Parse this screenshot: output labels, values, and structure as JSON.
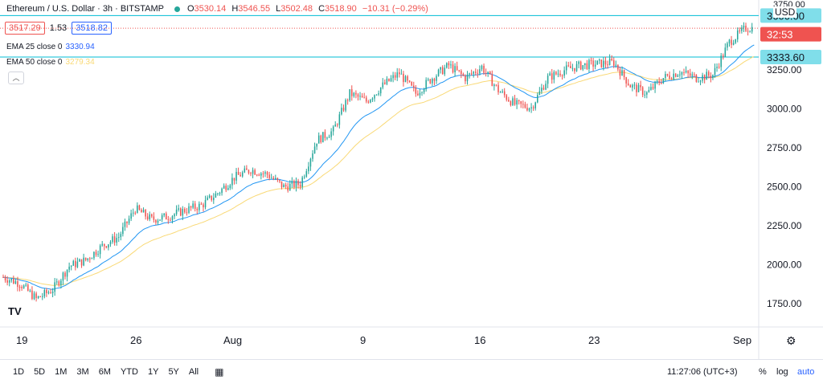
{
  "legend": {
    "symbol": "Ethereum / U.S. Dollar · 3h · BITSTAMP",
    "open_label": "O",
    "open": "3530.14",
    "high_label": "H",
    "high": "3546.55",
    "low_label": "L",
    "low": "3502.48",
    "close_label": "C",
    "close": "3518.90",
    "change": "−10.31 (−0.29%)"
  },
  "trade": {
    "sell": "3517.29",
    "spread": "1.53",
    "buy": "3518.82"
  },
  "indicators": {
    "ema25_label": "EMA 25 close 0",
    "ema25_value": "3330.94",
    "ema50_label": "EMA 50 close 0",
    "ema50_value": "3279.34"
  },
  "price_axis": {
    "currency": "USD",
    "labels": [
      {
        "value": 3250,
        "text": "3250.00"
      },
      {
        "value": 3000,
        "text": "3000.00"
      },
      {
        "value": 2750,
        "text": "2750.00"
      },
      {
        "value": 2500,
        "text": "2500.00"
      },
      {
        "value": 2250,
        "text": "2250.00"
      },
      {
        "value": 2000,
        "text": "2000.00"
      },
      {
        "value": 1750,
        "text": "1750.00"
      }
    ],
    "price_tag": "32:53",
    "level_3600": "3600.00",
    "level_3333": "3333.60",
    "partial_top": "3750.00"
  },
  "time_axis": [
    "19",
    "26",
    "Aug",
    "9",
    "16",
    "23",
    "Sep"
  ],
  "bottom_bar": {
    "ranges": [
      "1D",
      "5D",
      "1M",
      "3M",
      "6M",
      "YTD",
      "1Y",
      "5Y",
      "All"
    ],
    "time": "11:27:06 (UTC+3)",
    "percent": "%",
    "log": "log",
    "auto": "auto"
  },
  "colors": {
    "up": "#26a69a",
    "down": "#ef5350",
    "ema25": "#2196f3",
    "ema50": "#f9d976",
    "level": "#00bcd4"
  },
  "chart_data": {
    "type": "candlestick",
    "timeframe": "3h",
    "y_range": [
      1600,
      3700
    ],
    "x_range": [
      "2021-07-18",
      "2021-09-01"
    ],
    "horizontal_levels": [
      3600,
      3333.6
    ],
    "close_path": [
      {
        "date": "2021-07-18",
        "close": 1920
      },
      {
        "date": "2021-07-19",
        "close": 1880
      },
      {
        "date": "2021-07-20",
        "close": 1780
      },
      {
        "date": "2021-07-21",
        "close": 1840
      },
      {
        "date": "2021-07-22",
        "close": 1990
      },
      {
        "date": "2021-07-23",
        "close": 2030
      },
      {
        "date": "2021-07-24",
        "close": 2120
      },
      {
        "date": "2021-07-25",
        "close": 2180
      },
      {
        "date": "2021-07-26",
        "close": 2360
      },
      {
        "date": "2021-07-27",
        "close": 2290
      },
      {
        "date": "2021-07-28",
        "close": 2310
      },
      {
        "date": "2021-07-29",
        "close": 2350
      },
      {
        "date": "2021-07-30",
        "close": 2380
      },
      {
        "date": "2021-07-31",
        "close": 2460
      },
      {
        "date": "2021-08-01",
        "close": 2560
      },
      {
        "date": "2021-08-02",
        "close": 2610
      },
      {
        "date": "2021-08-03",
        "close": 2580
      },
      {
        "date": "2021-08-04",
        "close": 2500
      },
      {
        "date": "2021-08-05",
        "close": 2520
      },
      {
        "date": "2021-08-06",
        "close": 2800
      },
      {
        "date": "2021-08-07",
        "close": 2860
      },
      {
        "date": "2021-08-08",
        "close": 3100
      },
      {
        "date": "2021-08-09",
        "close": 3050
      },
      {
        "date": "2021-08-10",
        "close": 3150
      },
      {
        "date": "2021-08-11",
        "close": 3230
      },
      {
        "date": "2021-08-12",
        "close": 3100
      },
      {
        "date": "2021-08-13",
        "close": 3200
      },
      {
        "date": "2021-08-14",
        "close": 3280
      },
      {
        "date": "2021-08-15",
        "close": 3200
      },
      {
        "date": "2021-08-16",
        "close": 3270
      },
      {
        "date": "2021-08-17",
        "close": 3120
      },
      {
        "date": "2021-08-18",
        "close": 3030
      },
      {
        "date": "2021-08-19",
        "close": 3010
      },
      {
        "date": "2021-08-20",
        "close": 3200
      },
      {
        "date": "2021-08-21",
        "close": 3250
      },
      {
        "date": "2021-08-22",
        "close": 3280
      },
      {
        "date": "2021-08-23",
        "close": 3290
      },
      {
        "date": "2021-08-24",
        "close": 3300
      },
      {
        "date": "2021-08-25",
        "close": 3150
      },
      {
        "date": "2021-08-26",
        "close": 3100
      },
      {
        "date": "2021-08-27",
        "close": 3200
      },
      {
        "date": "2021-08-28",
        "close": 3240
      },
      {
        "date": "2021-08-29",
        "close": 3200
      },
      {
        "date": "2021-08-30",
        "close": 3220
      },
      {
        "date": "2021-08-31",
        "close": 3430
      },
      {
        "date": "2021-09-01",
        "close": 3520
      }
    ]
  }
}
